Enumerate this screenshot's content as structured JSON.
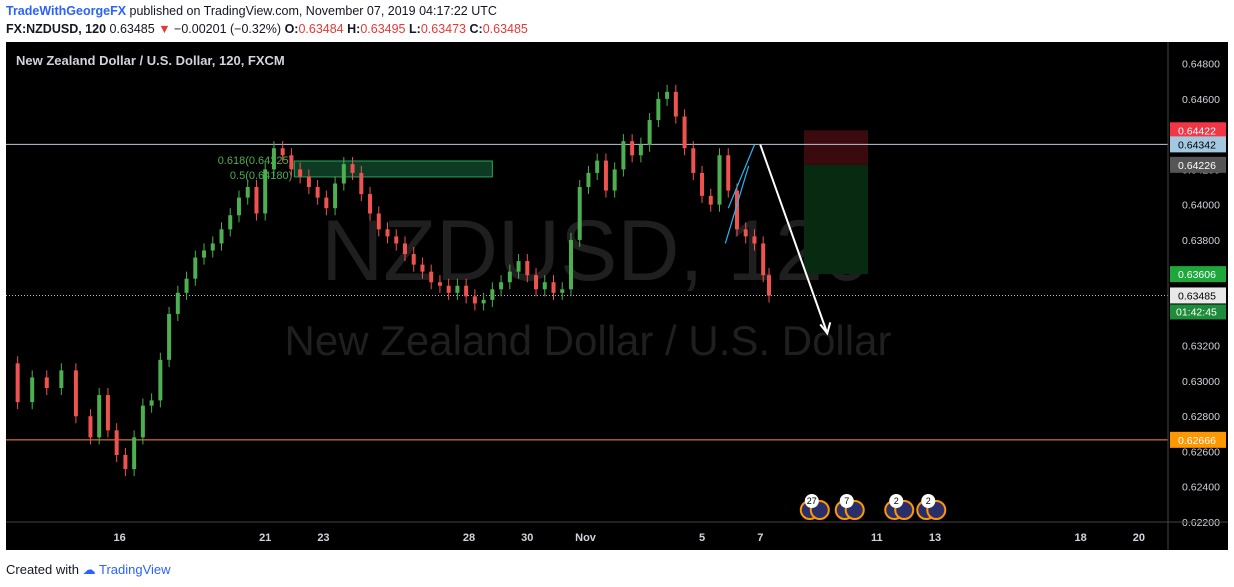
{
  "header": {
    "author": "TradeWithGeorgeFX",
    "published_text": "published on TradingView.com, November 07, 2019 04:17:22 UTC",
    "symbol": "FX:NZDUSD, 120",
    "price": "0.63485",
    "change_arrow": "▼",
    "change": "−0.00201 (−0.32%)",
    "open_label": "O:",
    "open": "0.63484",
    "high_label": "H:",
    "high": "0.63495",
    "low_label": "L:",
    "low": "0.63473",
    "close_label": "C:",
    "close": "0.63485"
  },
  "footer": {
    "created_with": "Created with",
    "brand": "TradingView"
  },
  "colors": {
    "background": "#000000",
    "up": "#26a69a",
    "up_light": "#4caf50",
    "down": "#ef5350",
    "axis_text": "#d1d4dc"
  },
  "chart_data": {
    "type": "candlestick",
    "title": "New Zealand Dollar / U.S. Dollar, 120, FXCM",
    "watermark_symbol": "NZDUSD, 120",
    "watermark_name": "New Zealand Dollar / U.S. Dollar",
    "ylim": [
      0.622,
      0.649
    ],
    "y_ticks": [
      "0.64800",
      "0.64600",
      "0.64400",
      "0.64200",
      "0.64000",
      "0.63800",
      "0.63600",
      "0.63400",
      "0.63200",
      "0.63000",
      "0.62800",
      "0.62600",
      "0.62400",
      "0.62200"
    ],
    "x_ticks": [
      "16",
      "21",
      "23",
      "28",
      "30",
      "Nov",
      "5",
      "7",
      "11",
      "13",
      "18",
      "20"
    ],
    "x_tick_index": [
      16,
      21,
      23,
      28,
      30,
      32,
      36,
      38,
      42,
      44,
      49,
      51
    ],
    "x_range": [
      12.1,
      52.0
    ],
    "price_series": {
      "x": [
        12.1,
        12.5,
        13.0,
        13.5,
        14.0,
        14.5,
        15.0,
        15.3,
        15.6,
        15.9,
        16.2,
        16.5,
        16.8,
        17.1,
        17.4,
        17.7,
        18.0,
        18.3,
        18.6,
        18.9,
        19.2,
        19.5,
        19.8,
        20.1,
        20.4,
        20.7,
        21.0,
        21.3,
        21.6,
        21.9,
        22.2,
        22.5,
        22.8,
        23.1,
        23.4,
        23.7,
        24.0,
        24.3,
        24.6,
        24.9,
        25.2,
        25.5,
        25.8,
        26.1,
        26.4,
        26.7,
        27.0,
        27.3,
        27.6,
        27.9,
        28.2,
        28.5,
        28.8,
        29.1,
        29.4,
        29.7,
        30.0,
        30.3,
        30.6,
        30.9,
        31.2,
        31.5,
        31.8,
        32.1,
        32.4,
        32.7,
        33.0,
        33.3,
        33.6,
        33.9,
        34.2,
        34.5,
        34.8,
        35.1,
        35.4,
        35.7,
        36.0,
        36.3,
        36.6,
        36.9,
        37.2,
        37.5,
        37.8,
        38.1,
        38.3
      ],
      "close": [
        0.631,
        0.6288,
        0.6302,
        0.6296,
        0.6306,
        0.628,
        0.6268,
        0.6292,
        0.6272,
        0.6258,
        0.625,
        0.6268,
        0.6286,
        0.6289,
        0.6312,
        0.6338,
        0.635,
        0.6358,
        0.637,
        0.6374,
        0.6378,
        0.6386,
        0.6394,
        0.6404,
        0.641,
        0.6395,
        0.642,
        0.6432,
        0.6428,
        0.642,
        0.6416,
        0.641,
        0.6404,
        0.6398,
        0.6412,
        0.6423,
        0.6418,
        0.6406,
        0.6395,
        0.6386,
        0.6382,
        0.6378,
        0.6372,
        0.6366,
        0.6362,
        0.6356,
        0.6354,
        0.635,
        0.6354,
        0.6348,
        0.6344,
        0.6346,
        0.6352,
        0.6356,
        0.6362,
        0.6368,
        0.636,
        0.6352,
        0.6356,
        0.635,
        0.6352,
        0.638,
        0.641,
        0.6418,
        0.6425,
        0.6408,
        0.642,
        0.6436,
        0.6428,
        0.6434,
        0.6448,
        0.646,
        0.6464,
        0.645,
        0.6432,
        0.6418,
        0.6405,
        0.64,
        0.6428,
        0.6408,
        0.6386,
        0.6382,
        0.6378,
        0.636,
        0.63485
      ]
    },
    "levels": [
      {
        "label": "0.64422",
        "value": 0.64422,
        "color": "#f23645"
      },
      {
        "label": "0.64342",
        "value": 0.64342,
        "color": "#a3c8e0"
      },
      {
        "label": "0.64226",
        "value": 0.64226,
        "color": "#555555"
      },
      {
        "label": "0.63606",
        "value": 0.63606,
        "color": "#1ea83c"
      },
      {
        "label": "0.63485",
        "value": 0.63485,
        "color": "#e8e8e8"
      },
      {
        "label": "0.62666",
        "value": 0.62666,
        "color": "#ff9800"
      }
    ],
    "countdown": "01:42:45",
    "fib_labels": [
      "0.618(0.64225)",
      "0.5(0.64180)"
    ],
    "fib_values": [
      0.64225,
      0.6418
    ],
    "risk_box": {
      "entry": 0.64226,
      "stop": 0.64422,
      "target": 0.63606,
      "x_from": 39.5,
      "x_to": 41.7
    },
    "projection_arrow": {
      "from": [
        38.0,
        0.6434
      ],
      "to": [
        40.3,
        0.6327
      ]
    },
    "events": [
      "27",
      "7",
      "2",
      "2"
    ]
  }
}
